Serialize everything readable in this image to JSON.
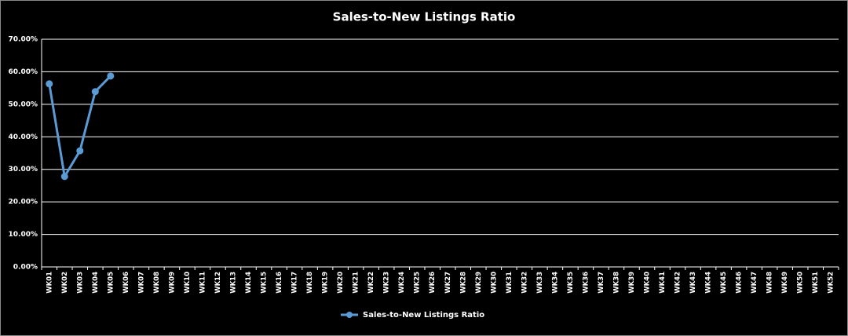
{
  "chart_data": {
    "type": "line",
    "title": "Sales-to-New Listings Ratio",
    "categories": [
      "WK01",
      "WK02",
      "WK03",
      "WK04",
      "WK05",
      "WK06",
      "WK07",
      "WK08",
      "WK09",
      "WK10",
      "WK11",
      "WK12",
      "WK13",
      "WK14",
      "WK15",
      "WK16",
      "WK17",
      "WK18",
      "WK19",
      "WK20",
      "WK21",
      "WK22",
      "WK23",
      "WK24",
      "WK25",
      "WK26",
      "WK27",
      "WK28",
      "WK29",
      "WK30",
      "WK31",
      "WK32",
      "WK33",
      "WK34",
      "WK35",
      "WK36",
      "WK37",
      "WK38",
      "WK39",
      "WK40",
      "WK41",
      "WK42",
      "WK43",
      "WK44",
      "WK45",
      "WK46",
      "WK47",
      "WK48",
      "WK49",
      "WK50",
      "WK51",
      "WK52"
    ],
    "series": [
      {
        "name": "Sales-to-New Listings Ratio",
        "color": "#5b9bd5",
        "values": [
          56.3,
          27.8,
          35.7,
          53.9,
          58.7,
          null,
          null,
          null,
          null,
          null,
          null,
          null,
          null,
          null,
          null,
          null,
          null,
          null,
          null,
          null,
          null,
          null,
          null,
          null,
          null,
          null,
          null,
          null,
          null,
          null,
          null,
          null,
          null,
          null,
          null,
          null,
          null,
          null,
          null,
          null,
          null,
          null,
          null,
          null,
          null,
          null,
          null,
          null,
          null,
          null,
          null,
          null
        ]
      }
    ],
    "ylim": [
      0,
      70
    ],
    "yticks": [
      {
        "value": 0,
        "label": "0.00%"
      },
      {
        "value": 10,
        "label": "10.00%"
      },
      {
        "value": 20,
        "label": "20.00%"
      },
      {
        "value": 30,
        "label": "30.00%"
      },
      {
        "value": 40,
        "label": "40.00%"
      },
      {
        "value": 50,
        "label": "50.00%"
      },
      {
        "value": 60,
        "label": "60.00%"
      },
      {
        "value": 70,
        "label": "70.00%"
      }
    ],
    "grid": true,
    "legend": "bottom"
  }
}
